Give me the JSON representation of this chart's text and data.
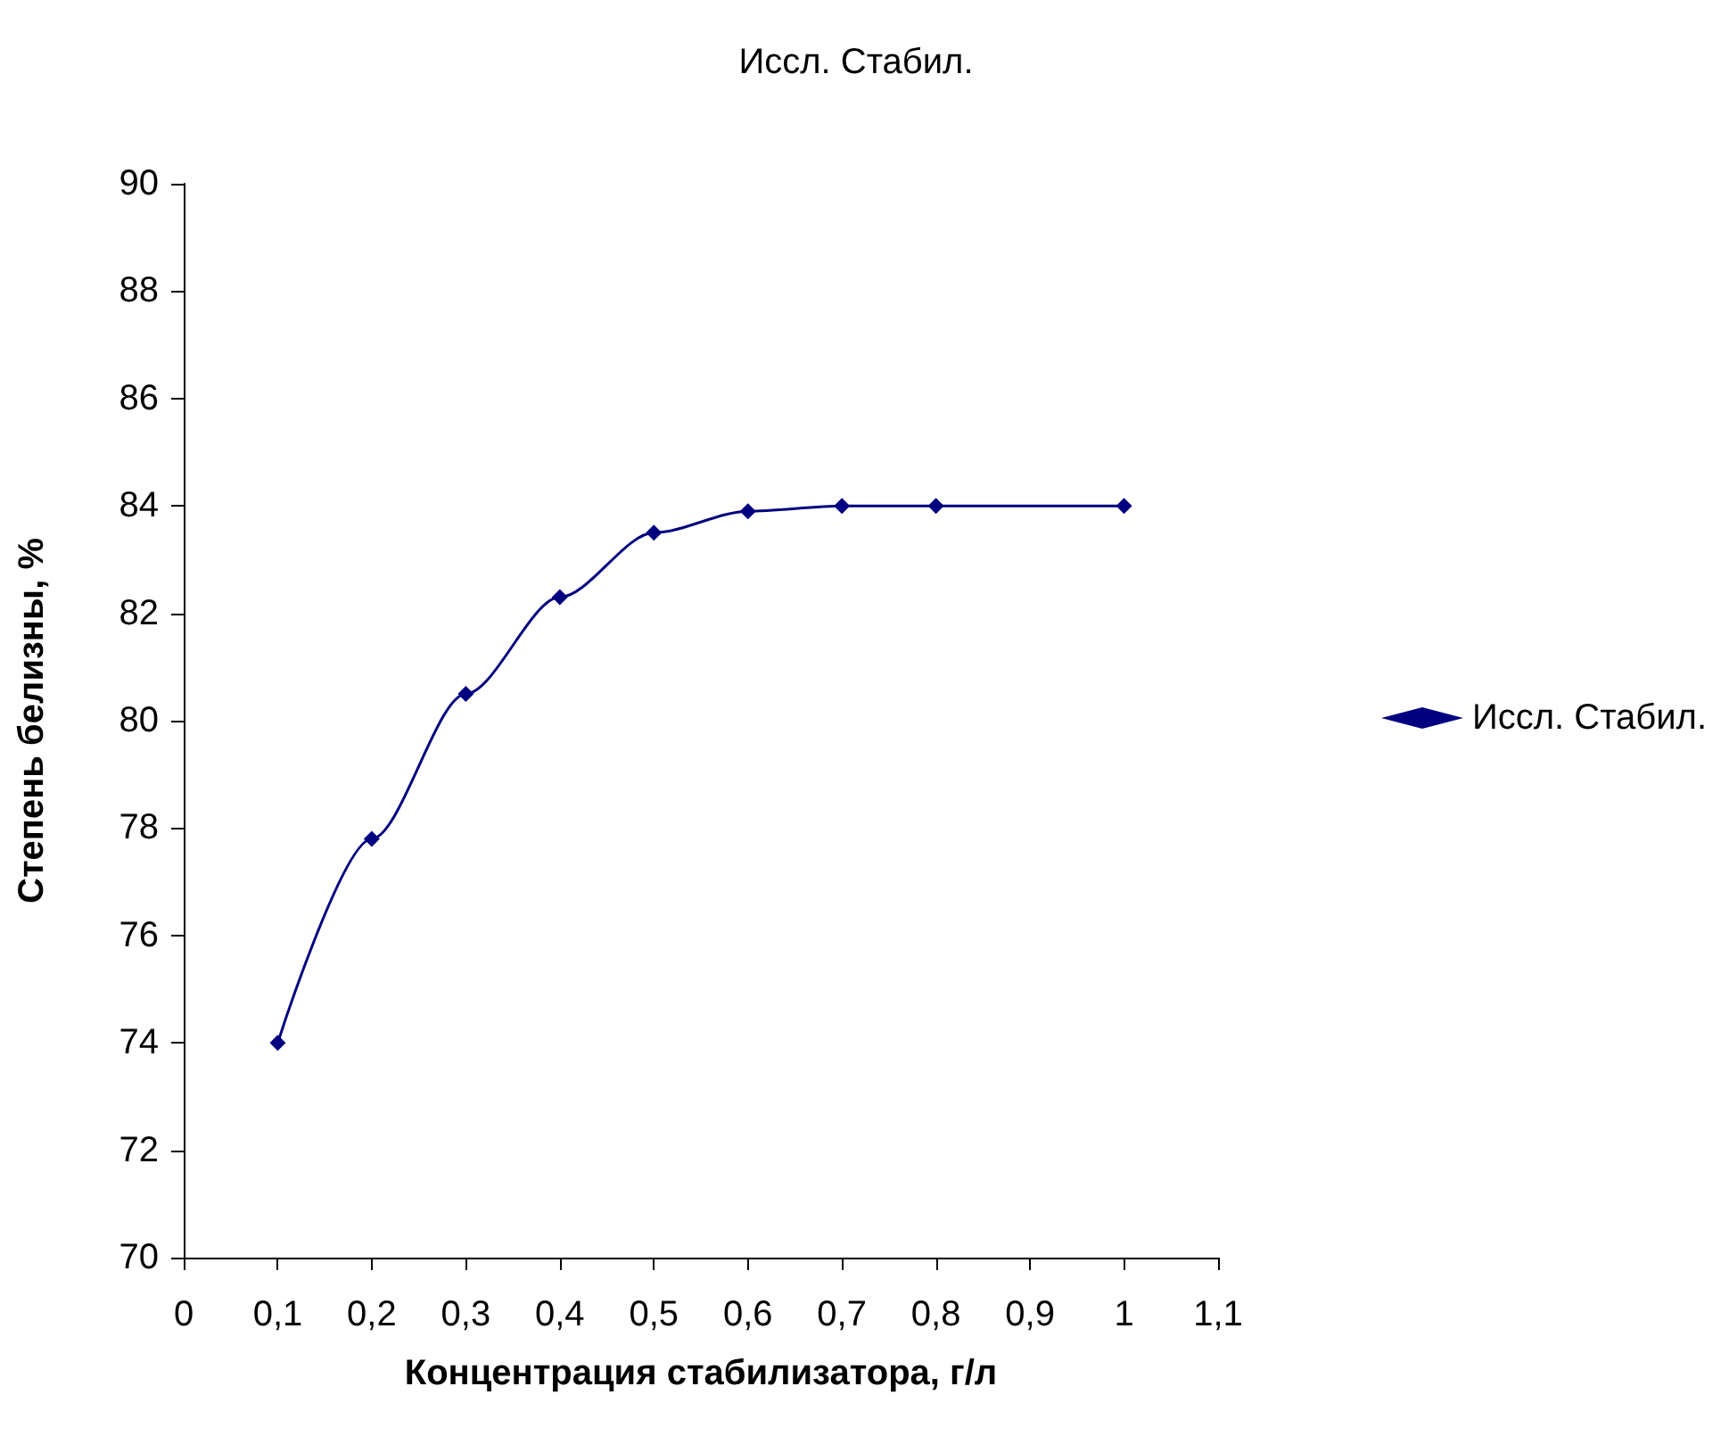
{
  "chart_data": {
    "type": "line",
    "title": "Иссл. Стабил.",
    "xlabel": "Концентрация стабилизатора, г/л",
    "ylabel": "Степень белизны, %",
    "x": [
      0.1,
      0.2,
      0.3,
      0.4,
      0.5,
      0.6,
      0.7,
      0.8,
      1
    ],
    "series": [
      {
        "name": "Иссл. Стабил.",
        "color": "#000080",
        "values": [
          74,
          77.8,
          80.5,
          82.3,
          83.5,
          83.9,
          84,
          84,
          84
        ]
      }
    ],
    "xlim": [
      0,
      1.1
    ],
    "xticks": [
      {
        "value": 0,
        "label": "0"
      },
      {
        "value": 0.1,
        "label": "0,1"
      },
      {
        "value": 0.2,
        "label": "0,2"
      },
      {
        "value": 0.3,
        "label": "0,3"
      },
      {
        "value": 0.4,
        "label": "0,4"
      },
      {
        "value": 0.5,
        "label": "0,5"
      },
      {
        "value": 0.6,
        "label": "0,6"
      },
      {
        "value": 0.7,
        "label": "0,7"
      },
      {
        "value": 0.8,
        "label": "0,8"
      },
      {
        "value": 0.9,
        "label": "0,9"
      },
      {
        "value": 1,
        "label": "1"
      },
      {
        "value": 1.1,
        "label": "1,1"
      }
    ],
    "ylim": [
      70,
      90
    ],
    "yticks": [
      70,
      72,
      74,
      76,
      78,
      80,
      82,
      84,
      86,
      88,
      90
    ],
    "grid": false,
    "legend": "right",
    "marker": "diamond",
    "line_style": "solid"
  }
}
